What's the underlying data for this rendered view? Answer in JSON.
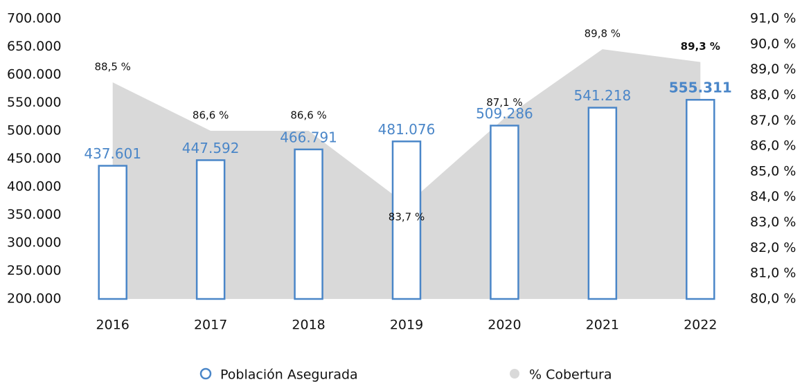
{
  "chart_data": {
    "type": "bar_area",
    "categories": [
      "2016",
      "2017",
      "2018",
      "2019",
      "2020",
      "2021",
      "2022"
    ],
    "series": [
      {
        "name": "Población Asegurada",
        "type": "bar",
        "color": "#4a86c8",
        "values": [
          437601,
          447592,
          466791,
          481076,
          509286,
          541218,
          555311
        ],
        "value_labels": [
          "437.601",
          "447.592",
          "466.791",
          "481.076",
          "509.286",
          "541.218",
          "555.311"
        ]
      },
      {
        "name": "% Cobertura",
        "type": "area",
        "axis": "y2",
        "color": "#d9d9d9",
        "values": [
          88.5,
          86.6,
          86.6,
          83.7,
          87.1,
          89.8,
          89.3
        ],
        "value_labels": [
          "88,5 %",
          "86,6 %",
          "86,6 %",
          "83,7 %",
          "87,1 %",
          "89,8 %",
          "89,3 %"
        ]
      }
    ],
    "ylim": [
      200000,
      700000
    ],
    "yticks": [
      {
        "value": 200000,
        "label": "200.000"
      },
      {
        "value": 250000,
        "label": "250.000"
      },
      {
        "value": 300000,
        "label": "300.000"
      },
      {
        "value": 350000,
        "label": "350.000"
      },
      {
        "value": 400000,
        "label": "400.000"
      },
      {
        "value": 450000,
        "label": "450.000"
      },
      {
        "value": 500000,
        "label": "500.000"
      },
      {
        "value": 550000,
        "label": "550.000"
      },
      {
        "value": 600000,
        "label": "600.000"
      },
      {
        "value": 650000,
        "label": "650.000"
      },
      {
        "value": 700000,
        "label": "700.000"
      }
    ],
    "y2lim": [
      80,
      91
    ],
    "y2ticks": [
      {
        "value": 80,
        "label": "80,0 %"
      },
      {
        "value": 81,
        "label": "81,0 %"
      },
      {
        "value": 82,
        "label": "82,0 %"
      },
      {
        "value": 83,
        "label": "83,0 %"
      },
      {
        "value": 84,
        "label": "84,0 %"
      },
      {
        "value": 85,
        "label": "85,0 %"
      },
      {
        "value": 86,
        "label": "86,0 %"
      },
      {
        "value": 87,
        "label": "87,0 %"
      },
      {
        "value": 88,
        "label": "88,0 %"
      },
      {
        "value": 89,
        "label": "89,0 %"
      },
      {
        "value": 90,
        "label": "90,0 %"
      },
      {
        "value": 91,
        "label": "91,0 %"
      }
    ],
    "grid": false
  }
}
